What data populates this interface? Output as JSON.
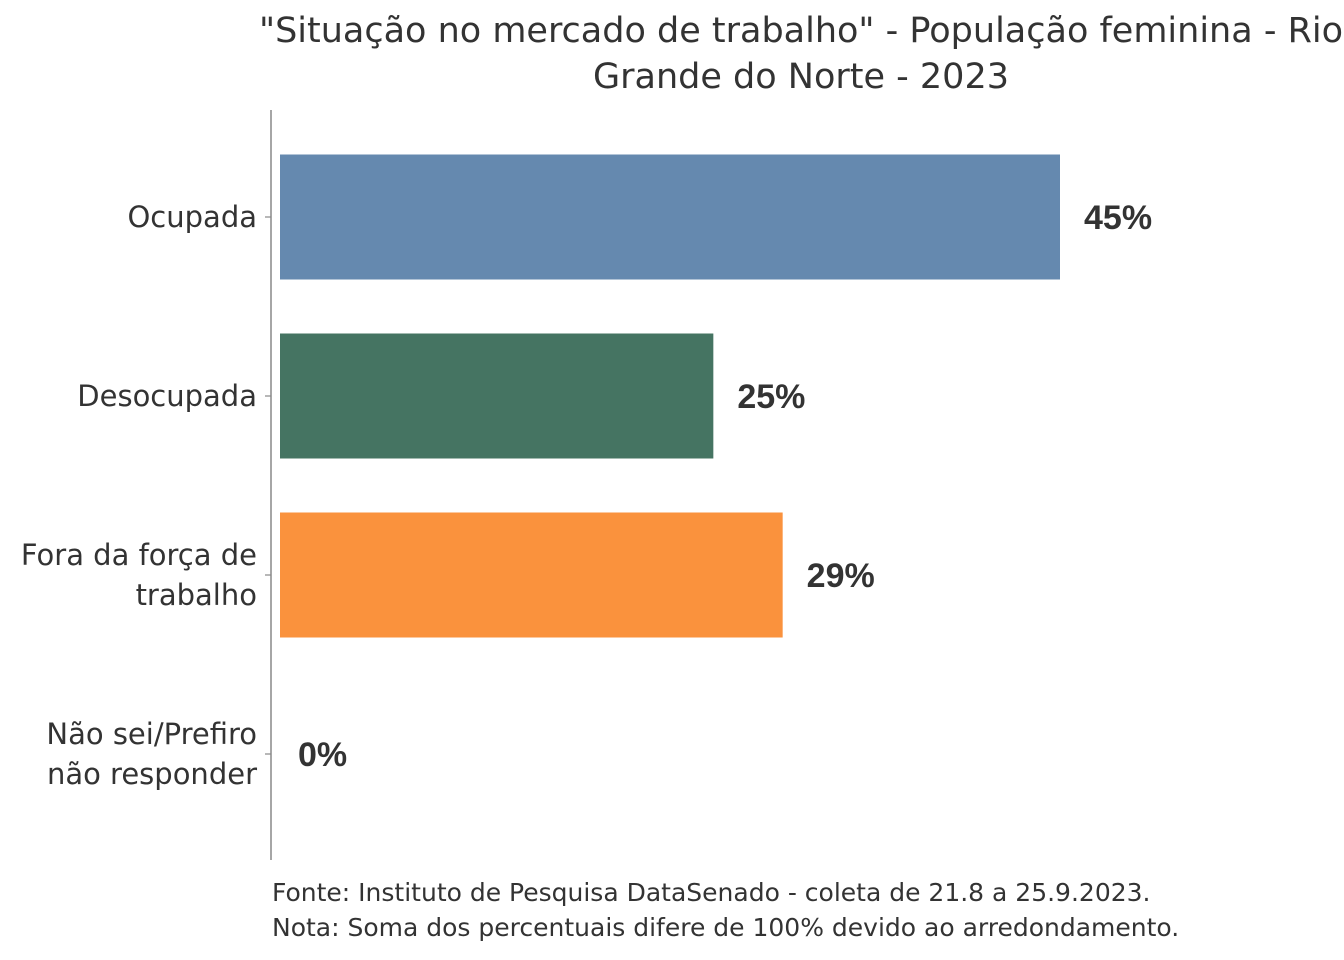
{
  "chart_data": {
    "type": "bar",
    "orientation": "horizontal",
    "title_line1": "\"Situação no mercado de trabalho\" - População feminina - Rio",
    "title_line2": "Grande do Norte - 2023",
    "categories": [
      [
        "Ocupada"
      ],
      [
        "Desocupada"
      ],
      [
        "Fora da força de",
        "trabalho"
      ],
      [
        "Não sei/Prefiro",
        "não responder"
      ]
    ],
    "values": [
      45,
      25,
      29,
      0
    ],
    "labels": [
      "45%",
      "25%",
      "29%",
      "0%"
    ],
    "colors": [
      "#6589AF",
      "#457462",
      "#FA923D",
      "#999999"
    ],
    "xlim": [
      0,
      45
    ],
    "grid": false,
    "legend": "none"
  },
  "footer": {
    "source": "Fonte: Instituto de Pesquisa DataSenado - coleta de 21.8 a 25.9.2023.",
    "note": "Nota: Soma dos percentuais difere de 100% devido ao arredondamento."
  }
}
